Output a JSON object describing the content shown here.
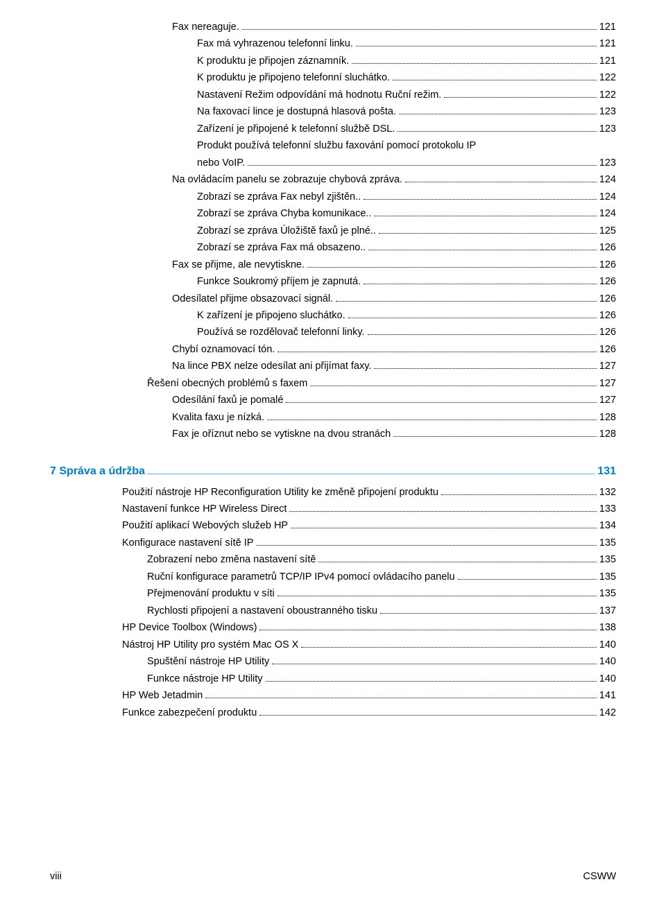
{
  "colors": {
    "text": "#000000",
    "accent": "#007cc2",
    "background": "#ffffff",
    "leader": "#000000"
  },
  "typography": {
    "font_family": "Arial",
    "body_fontsize_pt": 11,
    "chapter_fontsize_pt": 12,
    "line_height": 1.55
  },
  "toc": [
    {
      "indent": 4,
      "label": "Fax nereaguje.",
      "page": "121"
    },
    {
      "indent": 5,
      "label": "Fax má vyhrazenou telefonní linku.",
      "page": "121"
    },
    {
      "indent": 5,
      "label": "K produktu je připojen záznamník.",
      "page": "121"
    },
    {
      "indent": 5,
      "label": "K produktu je připojeno telefonní sluchátko.",
      "page": "122"
    },
    {
      "indent": 5,
      "label": "Nastavení Režim odpovídání má hodnotu Ruční režim.",
      "page": "122"
    },
    {
      "indent": 5,
      "label": "Na faxovací lince je dostupná hlasová pošta.",
      "page": "123"
    },
    {
      "indent": 5,
      "label": "Zařízení je připojené k telefonní službě DSL.",
      "page": "123"
    },
    {
      "indent": 5,
      "label": "Produkt používá telefonní službu faxování pomocí protokolu IP nebo VoIP.",
      "page": "123",
      "wrap": true
    },
    {
      "indent": 4,
      "label": "Na ovládacím panelu se zobrazuje chybová zpráva.",
      "page": "124"
    },
    {
      "indent": 5,
      "label": "Zobrazí se zpráva Fax nebyl zjištěn..",
      "page": "124"
    },
    {
      "indent": 5,
      "label": "Zobrazí se zpráva Chyba komunikace..",
      "page": "124"
    },
    {
      "indent": 5,
      "label": "Zobrazí se zpráva Úložiště faxů je plné..",
      "page": "125"
    },
    {
      "indent": 5,
      "label": "Zobrazí se zpráva Fax má obsazeno..",
      "page": "126"
    },
    {
      "indent": 4,
      "label": "Fax se přijme, ale nevytiskne.",
      "page": "126"
    },
    {
      "indent": 5,
      "label": "Funkce Soukromý příjem je zapnutá.",
      "page": "126"
    },
    {
      "indent": 4,
      "label": "Odesílatel přijme obsazovací signál.",
      "page": "126"
    },
    {
      "indent": 5,
      "label": "K zařízení je připojeno sluchátko.",
      "page": "126"
    },
    {
      "indent": 5,
      "label": "Používá se rozdělovač telefonní linky.",
      "page": "126"
    },
    {
      "indent": 4,
      "label": "Chybí oznamovací tón.",
      "page": "126"
    },
    {
      "indent": 4,
      "label": "Na lince PBX nelze odesílat ani přijímat faxy.",
      "page": "127"
    },
    {
      "indent": 3,
      "label": "Řešení obecných problémů s faxem",
      "page": "127"
    },
    {
      "indent": 4,
      "label": "Odesílání faxů je pomalé",
      "page": "127"
    },
    {
      "indent": 4,
      "label": "Kvalita faxu je nízká.",
      "page": "128"
    },
    {
      "indent": 4,
      "label": "Fax je oříznut nebo se vytiskne na dvou stranách",
      "page": "128"
    }
  ],
  "chapter": {
    "label": "7  Správa a údržba",
    "page": "131"
  },
  "toc2": [
    {
      "indent": 2,
      "label": "Použití nástroje HP Reconfiguration Utility ke změně připojení produktu",
      "page": "132"
    },
    {
      "indent": 2,
      "label": "Nastavení funkce HP Wireless Direct",
      "page": "133"
    },
    {
      "indent": 2,
      "label": "Použití aplikací Webových služeb HP",
      "page": "134"
    },
    {
      "indent": 2,
      "label": "Konfigurace nastavení sítě IP",
      "page": "135"
    },
    {
      "indent": 3,
      "label": "Zobrazení nebo změna nastavení sítě",
      "page": "135"
    },
    {
      "indent": 3,
      "label": "Ruční konfigurace parametrů TCP/IP IPv4 pomocí ovládacího panelu",
      "page": "135"
    },
    {
      "indent": 3,
      "label": "Přejmenování produktu v síti",
      "page": "135"
    },
    {
      "indent": 3,
      "label": "Rychlosti připojení a nastavení oboustranného tisku",
      "page": "137"
    },
    {
      "indent": 2,
      "label": "HP Device Toolbox (Windows)",
      "page": "138"
    },
    {
      "indent": 2,
      "label": "Nástroj HP Utility pro systém Mac OS X",
      "page": "140"
    },
    {
      "indent": 3,
      "label": "Spuštění nástroje HP Utility",
      "page": "140"
    },
    {
      "indent": 3,
      "label": "Funkce nástroje HP Utility",
      "page": "140"
    },
    {
      "indent": 2,
      "label": "HP Web Jetadmin",
      "page": "141"
    },
    {
      "indent": 2,
      "label": "Funkce zabezpečení produktu",
      "page": "142"
    }
  ],
  "footer": {
    "left": "viii",
    "right": "CSWW"
  }
}
